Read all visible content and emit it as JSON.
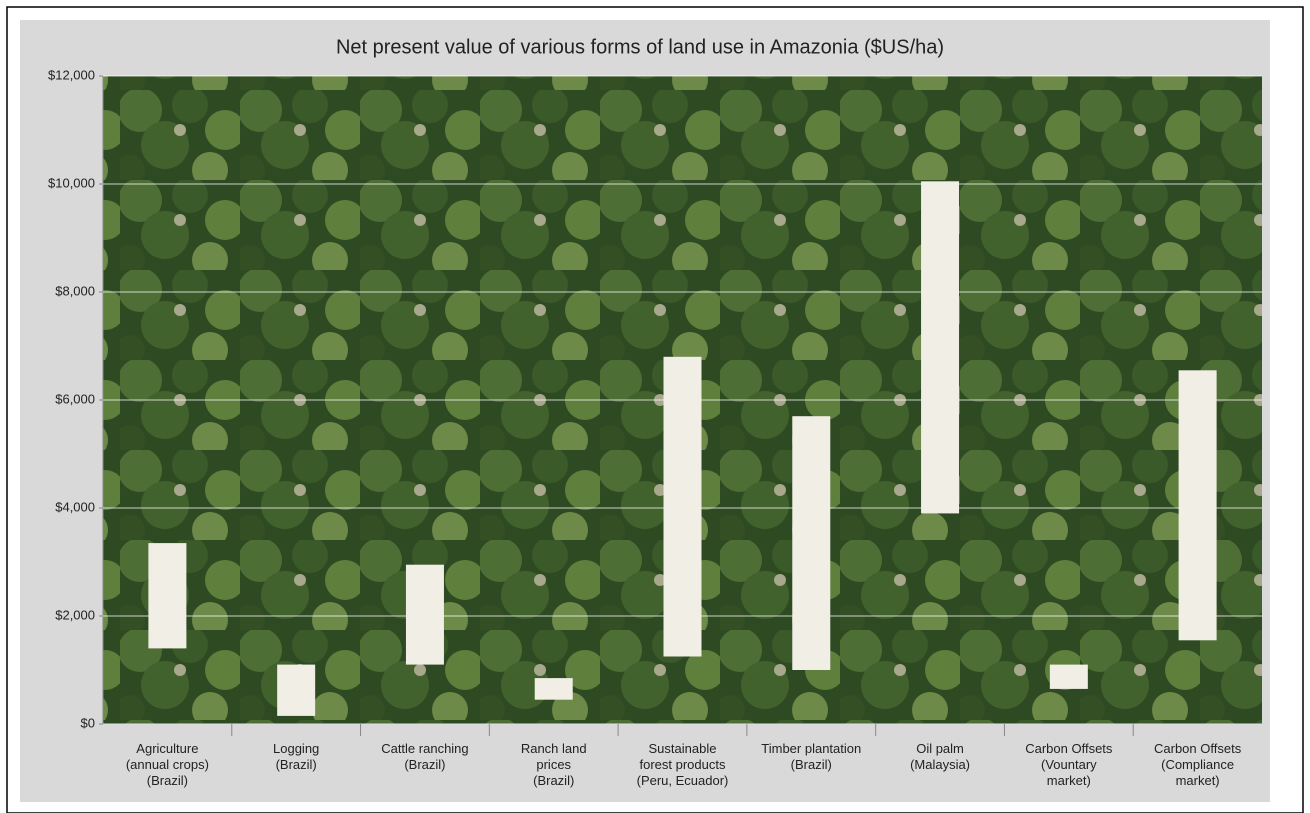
{
  "chart_data": {
    "type": "range-bar",
    "title": "Net present value of various forms of land use in Amazonia ($US/ha)",
    "categories": [
      "Agriculture\n(annual crops)\n(Brazil)",
      "Logging\n(Brazil)",
      "Cattle ranching\n(Brazil)",
      "Ranch land\nprices\n(Brazil)",
      "Sustainable\nforest products\n(Peru, Ecuador)",
      "Timber plantation\n(Brazil)",
      "Oil palm\n(Malaysia)",
      "Carbon Offsets\n(Vountary\nmarket)",
      "Carbon Offsets\n(Compliance\nmarket)"
    ],
    "low": [
      1400,
      150,
      1100,
      450,
      1250,
      1000,
      3900,
      650,
      1550
    ],
    "high": [
      3350,
      1100,
      2950,
      850,
      6800,
      5700,
      10050,
      1100,
      6550
    ],
    "color": "#f1eee5",
    "ylim": [
      0,
      12000
    ],
    "yticks": [
      {
        "value": 0,
        "label": "$0"
      },
      {
        "value": 2000,
        "label": "$2,000"
      },
      {
        "value": 4000,
        "label": "$4,000"
      },
      {
        "value": 6000,
        "label": "$6,000"
      },
      {
        "value": 8000,
        "label": "$8,000"
      },
      {
        "value": 10000,
        "label": "$10,000"
      },
      {
        "value": 12000,
        "label": "$12,000"
      }
    ],
    "grid": true
  }
}
